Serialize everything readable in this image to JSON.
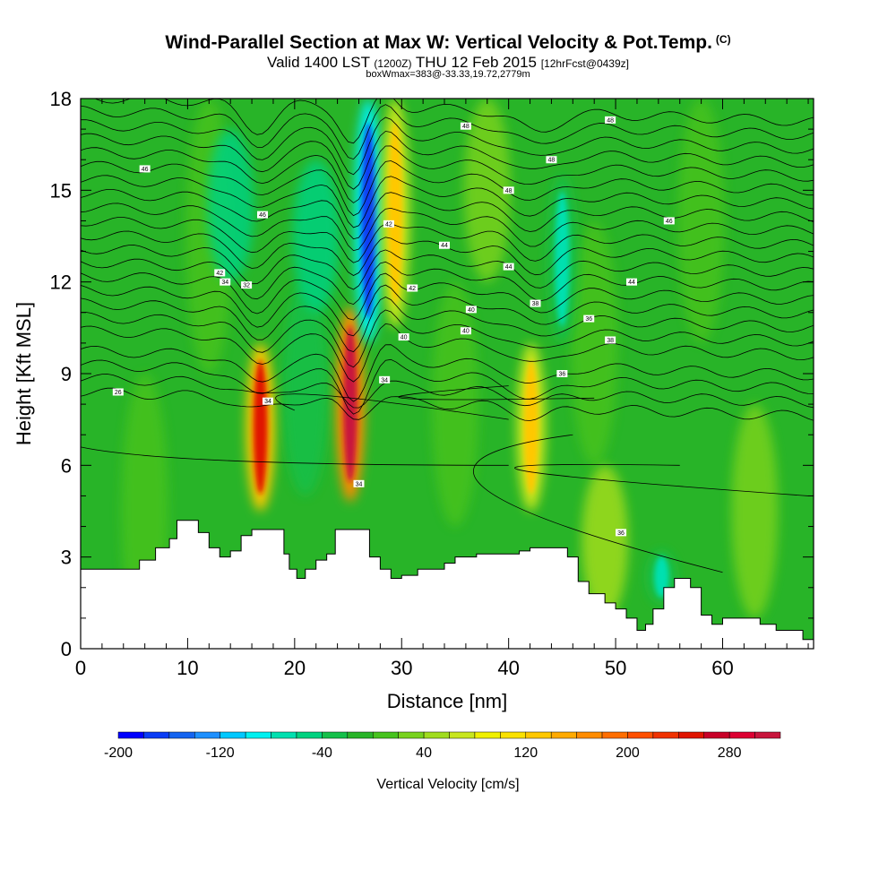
{
  "title": "Wind-Parallel Section at Max W: Vertical Velocity & Pot.Temp.",
  "title_mark": "(C)",
  "subtitle_main": "Valid 1400 LST",
  "subtitle_z": "(1200Z)",
  "subtitle_date": "THU 12 Feb 2015",
  "subtitle_fcst": "[12hrFcst@0439z]",
  "box_note": "boxWmax=383@-33.33,19.72,2779m",
  "chart_data": {
    "type": "heatmap",
    "xlabel": "Distance [nm]",
    "ylabel": "Height [Kft MSL]",
    "xlim": [
      0,
      68.5
    ],
    "ylim": [
      0,
      18
    ],
    "x_ticks": [
      "0",
      "10",
      "20",
      "30",
      "40",
      "50",
      "60"
    ],
    "y_ticks": [
      "0",
      "3",
      "6",
      "9",
      "12",
      "15",
      "18"
    ],
    "colorbar": {
      "label": "Vertical Velocity [cm/s]",
      "min": -200,
      "max": 320,
      "step": 20,
      "tick_labels": [
        "-200",
        "-120",
        "-40",
        "40",
        "120",
        "200",
        "280"
      ],
      "colors": [
        "#0000ff",
        "#0a3cf5",
        "#1464f0",
        "#1e90ff",
        "#00c8ff",
        "#00f0f0",
        "#00e0b0",
        "#00d280",
        "#14c04a",
        "#28b428",
        "#46c31e",
        "#78d21e",
        "#a0dc1e",
        "#c8e61e",
        "#f0f000",
        "#fae100",
        "#ffc800",
        "#ffaa00",
        "#ff8c00",
        "#ff6e00",
        "#ff5000",
        "#f03200",
        "#e01400",
        "#c80028",
        "#dc0032",
        "#c8143c"
      ]
    },
    "w_features_cm_s": [
      {
        "x": 16.8,
        "y_bottom": 4.5,
        "y_top": 10.0,
        "w": 240
      },
      {
        "x": 25.2,
        "y_bottom": 4.8,
        "y_top": 11.2,
        "w": 300
      },
      {
        "x": 26.9,
        "y_bottom": 10.0,
        "y_top": 18.0,
        "w": -180
      },
      {
        "x": 29.4,
        "y_bottom": 10.5,
        "y_top": 18.0,
        "w": 130
      },
      {
        "x": 42.1,
        "y_bottom": 4.5,
        "y_top": 10.0,
        "w": 130
      },
      {
        "x": 45.0,
        "y_bottom": 10.0,
        "y_top": 15.5,
        "w": -80
      },
      {
        "x": 54.3,
        "y_bottom": 1.5,
        "y_top": 3.2,
        "w": -80
      }
    ],
    "terrain_kft": [
      [
        0,
        2.6
      ],
      [
        3.5,
        2.6
      ],
      [
        5.5,
        2.9
      ],
      [
        7,
        3.3
      ],
      [
        8.3,
        3.6
      ],
      [
        9,
        4.2
      ],
      [
        10.1,
        4.2
      ],
      [
        11,
        3.8
      ],
      [
        12,
        3.3
      ],
      [
        13,
        3.0
      ],
      [
        14,
        3.2
      ],
      [
        15,
        3.7
      ],
      [
        16,
        3.9
      ],
      [
        18,
        3.9
      ],
      [
        19,
        3.1
      ],
      [
        19.5,
        2.6
      ],
      [
        20.2,
        2.3
      ],
      [
        21,
        2.6
      ],
      [
        22,
        2.9
      ],
      [
        23,
        3.1
      ],
      [
        23.8,
        3.9
      ],
      [
        26,
        3.9
      ],
      [
        27,
        3.0
      ],
      [
        28,
        2.6
      ],
      [
        29,
        2.3
      ],
      [
        30,
        2.4
      ],
      [
        31.5,
        2.6
      ],
      [
        33,
        2.6
      ],
      [
        34,
        2.8
      ],
      [
        35,
        3.0
      ],
      [
        36,
        3.0
      ],
      [
        37,
        3.1
      ],
      [
        38.5,
        3.1
      ],
      [
        39.5,
        3.1
      ],
      [
        40,
        3.1
      ],
      [
        41,
        3.2
      ],
      [
        42,
        3.3
      ],
      [
        44,
        3.3
      ],
      [
        45.5,
        3.0
      ],
      [
        46.5,
        2.2
      ],
      [
        47.5,
        1.8
      ],
      [
        49,
        1.5
      ],
      [
        50,
        1.3
      ],
      [
        51,
        1.0
      ],
      [
        52,
        0.6
      ],
      [
        52.8,
        0.8
      ],
      [
        53.5,
        1.3
      ],
      [
        54.5,
        2.0
      ],
      [
        55.5,
        2.3
      ],
      [
        57,
        2.0
      ],
      [
        58,
        1.1
      ],
      [
        59,
        0.8
      ],
      [
        60,
        1.0
      ],
      [
        62,
        1.0
      ],
      [
        63.5,
        0.8
      ],
      [
        65,
        0.6
      ],
      [
        66.5,
        0.6
      ],
      [
        67.5,
        0.3
      ],
      [
        68.5,
        0.2
      ]
    ],
    "theta_levels": [
      "26",
      "32",
      "34",
      "34",
      "34",
      "34",
      "36",
      "36",
      "36",
      "38",
      "38",
      "40",
      "40",
      "40",
      "42",
      "42",
      "42",
      "44",
      "44",
      "44",
      "46",
      "46",
      "46",
      "48",
      "48",
      "48",
      "48"
    ]
  }
}
